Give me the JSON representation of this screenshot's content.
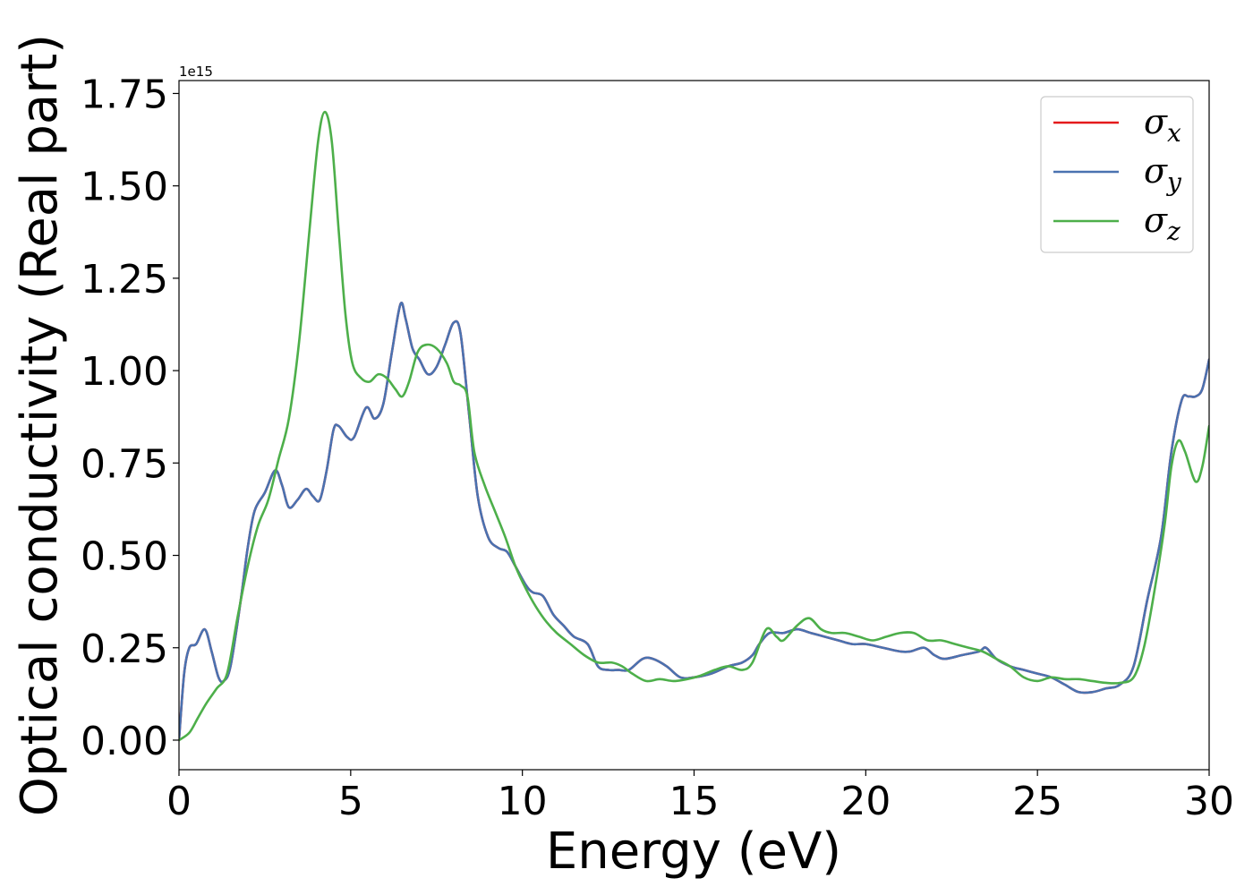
{
  "chart_data": {
    "type": "line",
    "xlabel": "Energy (eV)",
    "ylabel": "Optical conductivity (Real part)",
    "y_offset_text": "1e15",
    "xlim": [
      0,
      30
    ],
    "ylim": [
      -0.08,
      1.785
    ],
    "xticks": [
      0,
      5,
      10,
      15,
      20,
      25,
      30
    ],
    "xtick_labels": [
      "0",
      "5",
      "10",
      "15",
      "20",
      "25",
      "30"
    ],
    "yticks": [
      0.0,
      0.25,
      0.5,
      0.75,
      1.0,
      1.25,
      1.5,
      1.75
    ],
    "ytick_labels": [
      "0.00",
      "0.25",
      "0.50",
      "0.75",
      "1.00",
      "1.25",
      "1.50",
      "1.75"
    ],
    "grid": false,
    "legend_position": "upper-right",
    "series": [
      {
        "name": "σx",
        "base": "σ",
        "sub": "x",
        "color": "#e41a1c",
        "points": [
          [
            0,
            0
          ],
          [
            0.15,
            0.18
          ],
          [
            0.3,
            0.25
          ],
          [
            0.5,
            0.26
          ],
          [
            0.75,
            0.3
          ],
          [
            0.95,
            0.24
          ],
          [
            1.15,
            0.17
          ],
          [
            1.3,
            0.16
          ],
          [
            1.5,
            0.2
          ],
          [
            1.8,
            0.38
          ],
          [
            2.0,
            0.52
          ],
          [
            2.2,
            0.62
          ],
          [
            2.5,
            0.67
          ],
          [
            2.8,
            0.73
          ],
          [
            3.0,
            0.69
          ],
          [
            3.2,
            0.63
          ],
          [
            3.45,
            0.65
          ],
          [
            3.7,
            0.68
          ],
          [
            3.9,
            0.66
          ],
          [
            4.1,
            0.65
          ],
          [
            4.3,
            0.73
          ],
          [
            4.5,
            0.84
          ],
          [
            4.65,
            0.85
          ],
          [
            4.9,
            0.82
          ],
          [
            5.1,
            0.82
          ],
          [
            5.45,
            0.9
          ],
          [
            5.7,
            0.87
          ],
          [
            5.95,
            0.91
          ],
          [
            6.2,
            1.05
          ],
          [
            6.45,
            1.18
          ],
          [
            6.6,
            1.14
          ],
          [
            6.8,
            1.06
          ],
          [
            7.0,
            1.03
          ],
          [
            7.25,
            0.99
          ],
          [
            7.5,
            1.01
          ],
          [
            7.75,
            1.07
          ],
          [
            8.0,
            1.13
          ],
          [
            8.2,
            1.1
          ],
          [
            8.45,
            0.88
          ],
          [
            8.7,
            0.66
          ],
          [
            9.0,
            0.55
          ],
          [
            9.3,
            0.52
          ],
          [
            9.55,
            0.51
          ],
          [
            9.8,
            0.47
          ],
          [
            10.1,
            0.42
          ],
          [
            10.3,
            0.4
          ],
          [
            10.6,
            0.39
          ],
          [
            10.9,
            0.34
          ],
          [
            11.2,
            0.31
          ],
          [
            11.5,
            0.28
          ],
          [
            11.9,
            0.26
          ],
          [
            12.2,
            0.2
          ],
          [
            12.5,
            0.19
          ],
          [
            12.8,
            0.19
          ],
          [
            13.1,
            0.19
          ],
          [
            13.5,
            0.22
          ],
          [
            13.8,
            0.22
          ],
          [
            14.2,
            0.2
          ],
          [
            14.6,
            0.17
          ],
          [
            15.0,
            0.17
          ],
          [
            15.5,
            0.18
          ],
          [
            16.0,
            0.2
          ],
          [
            16.4,
            0.21
          ],
          [
            16.7,
            0.23
          ],
          [
            16.9,
            0.26
          ],
          [
            17.2,
            0.29
          ],
          [
            17.6,
            0.29
          ],
          [
            18.0,
            0.3
          ],
          [
            18.4,
            0.29
          ],
          [
            18.8,
            0.28
          ],
          [
            19.2,
            0.27
          ],
          [
            19.6,
            0.26
          ],
          [
            20.0,
            0.26
          ],
          [
            20.5,
            0.25
          ],
          [
            21.0,
            0.24
          ],
          [
            21.3,
            0.24
          ],
          [
            21.7,
            0.25
          ],
          [
            22.0,
            0.23
          ],
          [
            22.3,
            0.22
          ],
          [
            22.8,
            0.23
          ],
          [
            23.3,
            0.24
          ],
          [
            23.5,
            0.25
          ],
          [
            23.8,
            0.22
          ],
          [
            24.2,
            0.2
          ],
          [
            24.6,
            0.19
          ],
          [
            25.0,
            0.18
          ],
          [
            25.4,
            0.17
          ],
          [
            25.8,
            0.15
          ],
          [
            26.2,
            0.13
          ],
          [
            26.6,
            0.13
          ],
          [
            27.0,
            0.14
          ],
          [
            27.4,
            0.15
          ],
          [
            27.8,
            0.2
          ],
          [
            28.2,
            0.38
          ],
          [
            28.6,
            0.55
          ],
          [
            28.9,
            0.78
          ],
          [
            29.2,
            0.92
          ],
          [
            29.4,
            0.93
          ],
          [
            29.6,
            0.93
          ],
          [
            29.8,
            0.95
          ],
          [
            30.0,
            1.03
          ]
        ]
      },
      {
        "name": "σy",
        "base": "σ",
        "sub": "y",
        "color": "#4a72b0",
        "points": [
          [
            0,
            0
          ],
          [
            0.15,
            0.18
          ],
          [
            0.3,
            0.25
          ],
          [
            0.5,
            0.26
          ],
          [
            0.75,
            0.3
          ],
          [
            0.95,
            0.24
          ],
          [
            1.15,
            0.17
          ],
          [
            1.3,
            0.16
          ],
          [
            1.5,
            0.2
          ],
          [
            1.8,
            0.38
          ],
          [
            2.0,
            0.52
          ],
          [
            2.2,
            0.62
          ],
          [
            2.5,
            0.67
          ],
          [
            2.8,
            0.73
          ],
          [
            3.0,
            0.69
          ],
          [
            3.2,
            0.63
          ],
          [
            3.45,
            0.65
          ],
          [
            3.7,
            0.68
          ],
          [
            3.9,
            0.66
          ],
          [
            4.1,
            0.65
          ],
          [
            4.3,
            0.73
          ],
          [
            4.5,
            0.84
          ],
          [
            4.65,
            0.85
          ],
          [
            4.9,
            0.82
          ],
          [
            5.1,
            0.82
          ],
          [
            5.45,
            0.9
          ],
          [
            5.7,
            0.87
          ],
          [
            5.95,
            0.91
          ],
          [
            6.2,
            1.05
          ],
          [
            6.45,
            1.18
          ],
          [
            6.6,
            1.14
          ],
          [
            6.8,
            1.06
          ],
          [
            7.0,
            1.03
          ],
          [
            7.25,
            0.99
          ],
          [
            7.5,
            1.01
          ],
          [
            7.75,
            1.07
          ],
          [
            8.0,
            1.13
          ],
          [
            8.2,
            1.1
          ],
          [
            8.45,
            0.88
          ],
          [
            8.7,
            0.66
          ],
          [
            9.0,
            0.55
          ],
          [
            9.3,
            0.52
          ],
          [
            9.55,
            0.51
          ],
          [
            9.8,
            0.47
          ],
          [
            10.1,
            0.42
          ],
          [
            10.3,
            0.4
          ],
          [
            10.6,
            0.39
          ],
          [
            10.9,
            0.34
          ],
          [
            11.2,
            0.31
          ],
          [
            11.5,
            0.28
          ],
          [
            11.9,
            0.26
          ],
          [
            12.2,
            0.2
          ],
          [
            12.5,
            0.19
          ],
          [
            12.8,
            0.19
          ],
          [
            13.1,
            0.19
          ],
          [
            13.5,
            0.22
          ],
          [
            13.8,
            0.22
          ],
          [
            14.2,
            0.2
          ],
          [
            14.6,
            0.17
          ],
          [
            15.0,
            0.17
          ],
          [
            15.5,
            0.18
          ],
          [
            16.0,
            0.2
          ],
          [
            16.4,
            0.21
          ],
          [
            16.7,
            0.23
          ],
          [
            16.9,
            0.26
          ],
          [
            17.2,
            0.29
          ],
          [
            17.6,
            0.29
          ],
          [
            18.0,
            0.3
          ],
          [
            18.4,
            0.29
          ],
          [
            18.8,
            0.28
          ],
          [
            19.2,
            0.27
          ],
          [
            19.6,
            0.26
          ],
          [
            20.0,
            0.26
          ],
          [
            20.5,
            0.25
          ],
          [
            21.0,
            0.24
          ],
          [
            21.3,
            0.24
          ],
          [
            21.7,
            0.25
          ],
          [
            22.0,
            0.23
          ],
          [
            22.3,
            0.22
          ],
          [
            22.8,
            0.23
          ],
          [
            23.3,
            0.24
          ],
          [
            23.5,
            0.25
          ],
          [
            23.8,
            0.22
          ],
          [
            24.2,
            0.2
          ],
          [
            24.6,
            0.19
          ],
          [
            25.0,
            0.18
          ],
          [
            25.4,
            0.17
          ],
          [
            25.8,
            0.15
          ],
          [
            26.2,
            0.13
          ],
          [
            26.6,
            0.13
          ],
          [
            27.0,
            0.14
          ],
          [
            27.4,
            0.15
          ],
          [
            27.8,
            0.2
          ],
          [
            28.2,
            0.38
          ],
          [
            28.6,
            0.55
          ],
          [
            28.9,
            0.78
          ],
          [
            29.2,
            0.92
          ],
          [
            29.4,
            0.93
          ],
          [
            29.6,
            0.93
          ],
          [
            29.8,
            0.95
          ],
          [
            30.0,
            1.03
          ]
        ]
      },
      {
        "name": "σz",
        "base": "σ",
        "sub": "z",
        "color": "#4daf4a",
        "points": [
          [
            0,
            0
          ],
          [
            0.3,
            0.02
          ],
          [
            0.55,
            0.06
          ],
          [
            0.8,
            0.1
          ],
          [
            1.1,
            0.14
          ],
          [
            1.4,
            0.18
          ],
          [
            1.7,
            0.33
          ],
          [
            2.0,
            0.47
          ],
          [
            2.3,
            0.58
          ],
          [
            2.6,
            0.65
          ],
          [
            2.9,
            0.76
          ],
          [
            3.2,
            0.87
          ],
          [
            3.5,
            1.08
          ],
          [
            3.8,
            1.38
          ],
          [
            4.05,
            1.62
          ],
          [
            4.25,
            1.7
          ],
          [
            4.45,
            1.62
          ],
          [
            4.65,
            1.38
          ],
          [
            4.85,
            1.15
          ],
          [
            5.05,
            1.02
          ],
          [
            5.3,
            0.98
          ],
          [
            5.55,
            0.97
          ],
          [
            5.8,
            0.99
          ],
          [
            6.05,
            0.98
          ],
          [
            6.3,
            0.95
          ],
          [
            6.5,
            0.93
          ],
          [
            6.7,
            0.97
          ],
          [
            6.95,
            1.05
          ],
          [
            7.2,
            1.07
          ],
          [
            7.5,
            1.06
          ],
          [
            7.8,
            1.02
          ],
          [
            8.0,
            0.97
          ],
          [
            8.2,
            0.96
          ],
          [
            8.4,
            0.93
          ],
          [
            8.6,
            0.78
          ],
          [
            8.9,
            0.69
          ],
          [
            9.2,
            0.62
          ],
          [
            9.5,
            0.55
          ],
          [
            9.8,
            0.47
          ],
          [
            10.1,
            0.41
          ],
          [
            10.4,
            0.36
          ],
          [
            10.7,
            0.32
          ],
          [
            11.0,
            0.29
          ],
          [
            11.4,
            0.26
          ],
          [
            11.8,
            0.23
          ],
          [
            12.2,
            0.21
          ],
          [
            12.6,
            0.21
          ],
          [
            12.9,
            0.2
          ],
          [
            13.2,
            0.18
          ],
          [
            13.6,
            0.16
          ],
          [
            14.0,
            0.165
          ],
          [
            14.4,
            0.16
          ],
          [
            14.8,
            0.165
          ],
          [
            15.2,
            0.175
          ],
          [
            15.6,
            0.19
          ],
          [
            16.0,
            0.2
          ],
          [
            16.4,
            0.19
          ],
          [
            16.7,
            0.21
          ],
          [
            17.1,
            0.3
          ],
          [
            17.4,
            0.28
          ],
          [
            17.6,
            0.27
          ],
          [
            18.0,
            0.31
          ],
          [
            18.35,
            0.33
          ],
          [
            18.7,
            0.3
          ],
          [
            19.0,
            0.29
          ],
          [
            19.4,
            0.29
          ],
          [
            19.8,
            0.28
          ],
          [
            20.2,
            0.27
          ],
          [
            20.6,
            0.28
          ],
          [
            21.0,
            0.29
          ],
          [
            21.4,
            0.29
          ],
          [
            21.8,
            0.27
          ],
          [
            22.2,
            0.27
          ],
          [
            22.6,
            0.26
          ],
          [
            23.0,
            0.25
          ],
          [
            23.4,
            0.24
          ],
          [
            23.8,
            0.22
          ],
          [
            24.2,
            0.2
          ],
          [
            24.6,
            0.17
          ],
          [
            25.0,
            0.16
          ],
          [
            25.4,
            0.17
          ],
          [
            25.8,
            0.165
          ],
          [
            26.2,
            0.165
          ],
          [
            26.6,
            0.16
          ],
          [
            27.0,
            0.155
          ],
          [
            27.4,
            0.155
          ],
          [
            27.8,
            0.17
          ],
          [
            28.1,
            0.25
          ],
          [
            28.4,
            0.4
          ],
          [
            28.7,
            0.58
          ],
          [
            28.9,
            0.74
          ],
          [
            29.1,
            0.81
          ],
          [
            29.3,
            0.78
          ],
          [
            29.6,
            0.7
          ],
          [
            29.8,
            0.74
          ],
          [
            30.0,
            0.85
          ]
        ]
      }
    ]
  }
}
